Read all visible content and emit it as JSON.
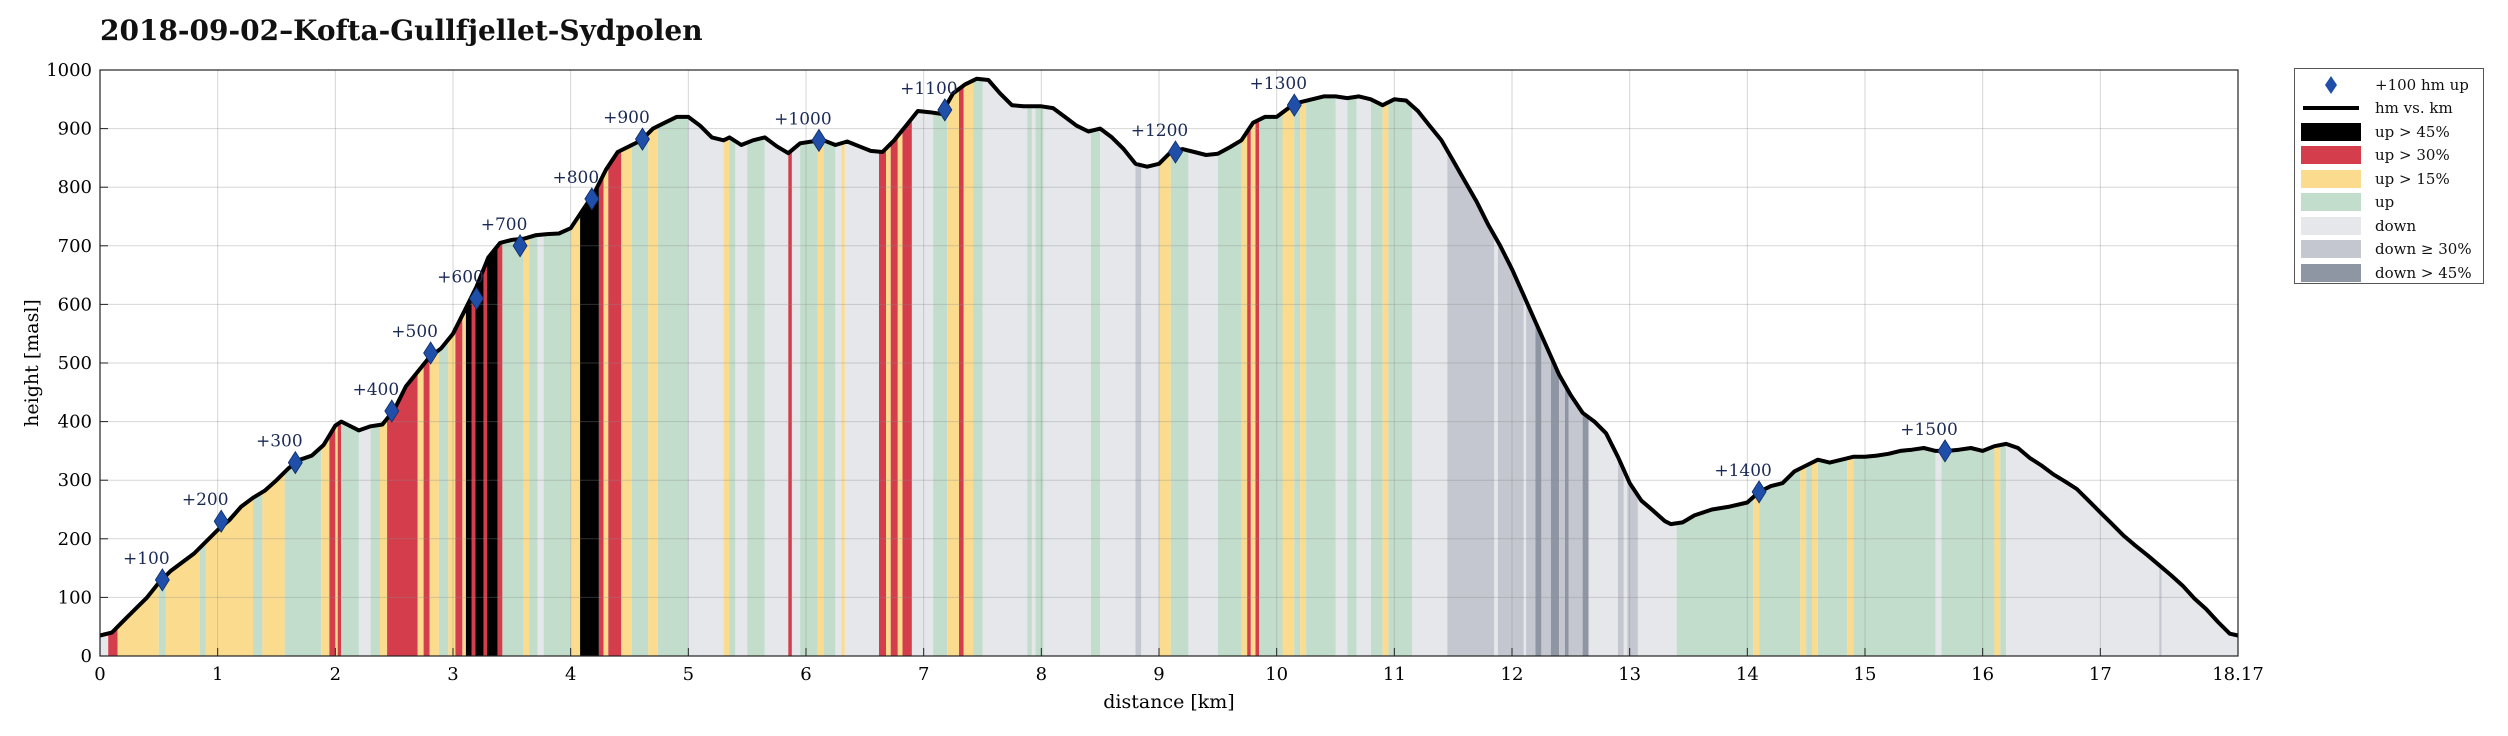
{
  "chart_data": {
    "type": "area",
    "title": "2018-09-02–Kofta-Gullfjellet-Sydpolen",
    "xlabel": "distance [km]",
    "ylabel": "height [masl]",
    "xlim": [
      0,
      18.17
    ],
    "ylim": [
      0,
      1000
    ],
    "xticks": [
      "0",
      "1",
      "2",
      "3",
      "4",
      "5",
      "6",
      "7",
      "8",
      "9",
      "10",
      "11",
      "12",
      "13",
      "14",
      "15",
      "16",
      "17",
      "18.17"
    ],
    "yticks": [
      "0",
      "100",
      "200",
      "300",
      "400",
      "500",
      "600",
      "700",
      "800",
      "900",
      "1000"
    ],
    "grid": true,
    "legend_position": "outside-right",
    "colors": {
      "line": "#000000",
      "marker": "#1f4fa8",
      "up45": "#000000",
      "up30": "#d43d4c",
      "up15": "#fbdc8e",
      "up": "#c2ddcb",
      "down": "#e6e7ea",
      "down30": "#c4c7cf",
      "down45": "#8f96a3"
    },
    "legend": [
      {
        "key": "marker",
        "label": "+100 hm up"
      },
      {
        "key": "line",
        "label": "hm vs. km"
      },
      {
        "key": "up45",
        "label": "up > 45%"
      },
      {
        "key": "up30",
        "label": "up > 30%"
      },
      {
        "key": "up15",
        "label": "up > 15%"
      },
      {
        "key": "up",
        "label": "up"
      },
      {
        "key": "down",
        "label": "down"
      },
      {
        "key": "down30",
        "label": "down ≥ 30%"
      },
      {
        "key": "down45",
        "label": "down > 45%"
      }
    ],
    "profile": [
      [
        0.0,
        35
      ],
      [
        0.1,
        40
      ],
      [
        0.2,
        60
      ],
      [
        0.3,
        80
      ],
      [
        0.4,
        100
      ],
      [
        0.5,
        125
      ],
      [
        0.6,
        145
      ],
      [
        0.8,
        175
      ],
      [
        1.0,
        215
      ],
      [
        1.1,
        232
      ],
      [
        1.2,
        255
      ],
      [
        1.3,
        270
      ],
      [
        1.4,
        282
      ],
      [
        1.5,
        300
      ],
      [
        1.6,
        320
      ],
      [
        1.7,
        335
      ],
      [
        1.8,
        342
      ],
      [
        1.9,
        360
      ],
      [
        2.0,
        393
      ],
      [
        2.05,
        400
      ],
      [
        2.1,
        395
      ],
      [
        2.2,
        385
      ],
      [
        2.3,
        392
      ],
      [
        2.4,
        395
      ],
      [
        2.5,
        420
      ],
      [
        2.6,
        460
      ],
      [
        2.7,
        485
      ],
      [
        2.8,
        510
      ],
      [
        2.9,
        525
      ],
      [
        3.0,
        550
      ],
      [
        3.1,
        590
      ],
      [
        3.2,
        630
      ],
      [
        3.3,
        680
      ],
      [
        3.4,
        705
      ],
      [
        3.5,
        710
      ],
      [
        3.6,
        712
      ],
      [
        3.7,
        718
      ],
      [
        3.8,
        720
      ],
      [
        3.9,
        721
      ],
      [
        4.0,
        730
      ],
      [
        4.1,
        760
      ],
      [
        4.2,
        790
      ],
      [
        4.3,
        830
      ],
      [
        4.4,
        860
      ],
      [
        4.5,
        870
      ],
      [
        4.6,
        880
      ],
      [
        4.7,
        900
      ],
      [
        4.8,
        910
      ],
      [
        4.9,
        920
      ],
      [
        5.0,
        920
      ],
      [
        5.1,
        905
      ],
      [
        5.2,
        885
      ],
      [
        5.3,
        880
      ],
      [
        5.35,
        885
      ],
      [
        5.45,
        872
      ],
      [
        5.55,
        880
      ],
      [
        5.65,
        885
      ],
      [
        5.75,
        870
      ],
      [
        5.85,
        858
      ],
      [
        5.95,
        875
      ],
      [
        6.05,
        878
      ],
      [
        6.15,
        880
      ],
      [
        6.25,
        872
      ],
      [
        6.35,
        878
      ],
      [
        6.45,
        870
      ],
      [
        6.55,
        862
      ],
      [
        6.65,
        860
      ],
      [
        6.75,
        880
      ],
      [
        6.85,
        905
      ],
      [
        6.95,
        930
      ],
      [
        7.05,
        928
      ],
      [
        7.15,
        925
      ],
      [
        7.25,
        960
      ],
      [
        7.35,
        975
      ],
      [
        7.45,
        985
      ],
      [
        7.55,
        983
      ],
      [
        7.65,
        960
      ],
      [
        7.75,
        940
      ],
      [
        7.85,
        938
      ],
      [
        8.0,
        938
      ],
      [
        8.1,
        935
      ],
      [
        8.2,
        920
      ],
      [
        8.3,
        905
      ],
      [
        8.4,
        895
      ],
      [
        8.5,
        900
      ],
      [
        8.6,
        885
      ],
      [
        8.7,
        865
      ],
      [
        8.8,
        840
      ],
      [
        8.9,
        835
      ],
      [
        9.0,
        840
      ],
      [
        9.1,
        860
      ],
      [
        9.2,
        865
      ],
      [
        9.3,
        860
      ],
      [
        9.4,
        855
      ],
      [
        9.5,
        857
      ],
      [
        9.6,
        868
      ],
      [
        9.7,
        880
      ],
      [
        9.8,
        910
      ],
      [
        9.9,
        920
      ],
      [
        10.0,
        920
      ],
      [
        10.1,
        935
      ],
      [
        10.2,
        945
      ],
      [
        10.3,
        950
      ],
      [
        10.4,
        955
      ],
      [
        10.5,
        955
      ],
      [
        10.6,
        952
      ],
      [
        10.7,
        955
      ],
      [
        10.8,
        950
      ],
      [
        10.9,
        940
      ],
      [
        11.0,
        950
      ],
      [
        11.1,
        948
      ],
      [
        11.2,
        930
      ],
      [
        11.3,
        905
      ],
      [
        11.4,
        880
      ],
      [
        11.5,
        845
      ],
      [
        11.6,
        810
      ],
      [
        11.7,
        775
      ],
      [
        11.8,
        735
      ],
      [
        11.9,
        700
      ],
      [
        12.0,
        660
      ],
      [
        12.1,
        615
      ],
      [
        12.2,
        570
      ],
      [
        12.3,
        525
      ],
      [
        12.4,
        480
      ],
      [
        12.5,
        445
      ],
      [
        12.6,
        415
      ],
      [
        12.7,
        400
      ],
      [
        12.8,
        380
      ],
      [
        12.9,
        340
      ],
      [
        13.0,
        295
      ],
      [
        13.1,
        265
      ],
      [
        13.2,
        248
      ],
      [
        13.3,
        230
      ],
      [
        13.35,
        225
      ],
      [
        13.45,
        228
      ],
      [
        13.55,
        240
      ],
      [
        13.7,
        250
      ],
      [
        13.85,
        255
      ],
      [
        14.0,
        262
      ],
      [
        14.1,
        280
      ],
      [
        14.2,
        290
      ],
      [
        14.3,
        295
      ],
      [
        14.4,
        315
      ],
      [
        14.5,
        325
      ],
      [
        14.6,
        335
      ],
      [
        14.7,
        330
      ],
      [
        14.8,
        335
      ],
      [
        14.9,
        340
      ],
      [
        15.0,
        340
      ],
      [
        15.1,
        342
      ],
      [
        15.2,
        345
      ],
      [
        15.3,
        350
      ],
      [
        15.4,
        352
      ],
      [
        15.5,
        355
      ],
      [
        15.6,
        350
      ],
      [
        15.7,
        350
      ],
      [
        15.8,
        352
      ],
      [
        15.9,
        355
      ],
      [
        16.0,
        350
      ],
      [
        16.1,
        358
      ],
      [
        16.2,
        362
      ],
      [
        16.3,
        355
      ],
      [
        16.4,
        338
      ],
      [
        16.5,
        325
      ],
      [
        16.6,
        310
      ],
      [
        16.7,
        298
      ],
      [
        16.8,
        285
      ],
      [
        16.9,
        265
      ],
      [
        17.0,
        245
      ],
      [
        17.1,
        225
      ],
      [
        17.2,
        205
      ],
      [
        17.3,
        188
      ],
      [
        17.4,
        172
      ],
      [
        17.5,
        155
      ],
      [
        17.6,
        138
      ],
      [
        17.7,
        120
      ],
      [
        17.8,
        98
      ],
      [
        17.9,
        80
      ],
      [
        18.0,
        58
      ],
      [
        18.1,
        38
      ],
      [
        18.17,
        35
      ]
    ],
    "markers": [
      {
        "x": 0.53,
        "y": 130,
        "label": "+100"
      },
      {
        "x": 1.03,
        "y": 230,
        "label": "+200"
      },
      {
        "x": 1.66,
        "y": 330,
        "label": "+300"
      },
      {
        "x": 2.48,
        "y": 418,
        "label": "+400"
      },
      {
        "x": 2.81,
        "y": 517,
        "label": "+500"
      },
      {
        "x": 3.2,
        "y": 610,
        "label": "+600"
      },
      {
        "x": 3.57,
        "y": 700,
        "label": "+700"
      },
      {
        "x": 4.18,
        "y": 780,
        "label": "+800"
      },
      {
        "x": 4.61,
        "y": 882,
        "label": "+900"
      },
      {
        "x": 6.11,
        "y": 880,
        "label": "+1000"
      },
      {
        "x": 7.18,
        "y": 932,
        "label": "+1100"
      },
      {
        "x": 9.14,
        "y": 860,
        "label": "+1200"
      },
      {
        "x": 10.15,
        "y": 940,
        "label": "+1300"
      },
      {
        "x": 14.1,
        "y": 280,
        "label": "+1400"
      },
      {
        "x": 15.68,
        "y": 350,
        "label": "+1500"
      }
    ],
    "bands": [
      [
        "down",
        0,
        0.07
      ],
      [
        "up30",
        0.07,
        0.15
      ],
      [
        "up15",
        0.15,
        0.5
      ],
      [
        "up",
        0.5,
        0.56
      ],
      [
        "up15",
        0.56,
        0.85
      ],
      [
        "up",
        0.85,
        0.9
      ],
      [
        "up15",
        0.9,
        1.3
      ],
      [
        "up",
        1.3,
        1.38
      ],
      [
        "up15",
        1.38,
        1.57
      ],
      [
        "up",
        1.57,
        1.88
      ],
      [
        "up15",
        1.88,
        1.95
      ],
      [
        "up30",
        1.95,
        2.0
      ],
      [
        "up15",
        2.0,
        2.02
      ],
      [
        "up30",
        2.02,
        2.05
      ],
      [
        "up",
        2.05,
        2.2
      ],
      [
        "down",
        2.2,
        2.3
      ],
      [
        "up",
        2.3,
        2.38
      ],
      [
        "up15",
        2.38,
        2.44
      ],
      [
        "up30",
        2.44,
        2.7
      ],
      [
        "up15",
        2.7,
        2.75
      ],
      [
        "up30",
        2.75,
        2.8
      ],
      [
        "up15",
        2.8,
        2.88
      ],
      [
        "up",
        2.88,
        2.96
      ],
      [
        "up15",
        2.96,
        3.02
      ],
      [
        "up30",
        3.02,
        3.08
      ],
      [
        "up15",
        3.08,
        3.11
      ],
      [
        "up45",
        3.11,
        3.16
      ],
      [
        "up30",
        3.16,
        3.19
      ],
      [
        "up45",
        3.19,
        3.26
      ],
      [
        "up30",
        3.26,
        3.29
      ],
      [
        "up45",
        3.29,
        3.38
      ],
      [
        "up30",
        3.38,
        3.42
      ],
      [
        "up",
        3.42,
        3.6
      ],
      [
        "up15",
        3.6,
        3.65
      ],
      [
        "up",
        3.65,
        3.72
      ],
      [
        "down",
        3.72,
        3.77
      ],
      [
        "up",
        3.77,
        4.0
      ],
      [
        "up15",
        4.0,
        4.08
      ],
      [
        "up45",
        4.08,
        4.24
      ],
      [
        "up30",
        4.24,
        4.28
      ],
      [
        "up15",
        4.28,
        4.32
      ],
      [
        "up30",
        4.32,
        4.43
      ],
      [
        "up15",
        4.43,
        4.52
      ],
      [
        "up",
        4.52,
        4.66
      ],
      [
        "up15",
        4.66,
        4.74
      ],
      [
        "up",
        4.74,
        5.0
      ],
      [
        "down",
        5.0,
        5.3
      ],
      [
        "up15",
        5.3,
        5.35
      ],
      [
        "up",
        5.35,
        5.4
      ],
      [
        "down",
        5.4,
        5.5
      ],
      [
        "up",
        5.5,
        5.65
      ],
      [
        "down",
        5.65,
        5.85
      ],
      [
        "up30",
        5.85,
        5.88
      ],
      [
        "down",
        5.88,
        5.95
      ],
      [
        "up",
        5.95,
        6.1
      ],
      [
        "up15",
        6.1,
        6.15
      ],
      [
        "up",
        6.15,
        6.25
      ],
      [
        "down",
        6.25,
        6.3
      ],
      [
        "up15",
        6.3,
        6.33
      ],
      [
        "down",
        6.33,
        6.62
      ],
      [
        "up30",
        6.62,
        6.68
      ],
      [
        "up15",
        6.68,
        6.72
      ],
      [
        "up30",
        6.72,
        6.78
      ],
      [
        "up15",
        6.78,
        6.82
      ],
      [
        "up30",
        6.82,
        6.9
      ],
      [
        "down",
        6.9,
        7.08
      ],
      [
        "up",
        7.08,
        7.2
      ],
      [
        "up15",
        7.2,
        7.3
      ],
      [
        "up30",
        7.3,
        7.34
      ],
      [
        "up15",
        7.34,
        7.42
      ],
      [
        "up",
        7.42,
        7.5
      ],
      [
        "down",
        7.5,
        7.88
      ],
      [
        "up",
        7.88,
        7.92
      ],
      [
        "down",
        7.92,
        7.95
      ],
      [
        "up",
        7.95,
        8.02
      ],
      [
        "down",
        8.02,
        8.42
      ],
      [
        "up",
        8.42,
        8.5
      ],
      [
        "down",
        8.5,
        8.8
      ],
      [
        "down30",
        8.8,
        8.85
      ],
      [
        "down",
        8.85,
        9.0
      ],
      [
        "up15",
        9.0,
        9.1
      ],
      [
        "up",
        9.1,
        9.25
      ],
      [
        "down",
        9.25,
        9.5
      ],
      [
        "up",
        9.5,
        9.7
      ],
      [
        "up15",
        9.7,
        9.75
      ],
      [
        "up30",
        9.75,
        9.78
      ],
      [
        "up15",
        9.78,
        9.82
      ],
      [
        "up30",
        9.82,
        9.85
      ],
      [
        "up",
        9.85,
        10.05
      ],
      [
        "up15",
        10.05,
        10.15
      ],
      [
        "up",
        10.15,
        10.2
      ],
      [
        "up15",
        10.2,
        10.25
      ],
      [
        "up",
        10.25,
        10.5
      ],
      [
        "down",
        10.5,
        10.6
      ],
      [
        "up",
        10.6,
        10.68
      ],
      [
        "down",
        10.68,
        10.8
      ],
      [
        "up",
        10.8,
        10.9
      ],
      [
        "up15",
        10.9,
        10.95
      ],
      [
        "up",
        10.95,
        11.15
      ],
      [
        "down",
        11.15,
        11.45
      ],
      [
        "down30",
        11.45,
        11.85
      ],
      [
        "down",
        11.85,
        11.88
      ],
      [
        "down30",
        11.88,
        12.1
      ],
      [
        "down",
        12.1,
        12.12
      ],
      [
        "down30",
        12.12,
        12.2
      ],
      [
        "down45",
        12.2,
        12.25
      ],
      [
        "down30",
        12.25,
        12.33
      ],
      [
        "down45",
        12.33,
        12.4
      ],
      [
        "down30",
        12.4,
        12.45
      ],
      [
        "down45",
        12.45,
        12.48
      ],
      [
        "down30",
        12.48,
        12.6
      ],
      [
        "down45",
        12.6,
        12.65
      ],
      [
        "down",
        12.65,
        12.9
      ],
      [
        "down30",
        12.9,
        12.95
      ],
      [
        "down",
        12.95,
        12.98
      ],
      [
        "down30",
        12.98,
        13.07
      ],
      [
        "down",
        13.07,
        13.4
      ],
      [
        "up",
        13.4,
        14.05
      ],
      [
        "up15",
        14.05,
        14.1
      ],
      [
        "up",
        14.1,
        14.45
      ],
      [
        "up15",
        14.45,
        14.5
      ],
      [
        "up",
        14.5,
        14.55
      ],
      [
        "up15",
        14.55,
        14.6
      ],
      [
        "up",
        14.6,
        14.85
      ],
      [
        "up15",
        14.85,
        14.9
      ],
      [
        "up",
        14.9,
        15.6
      ],
      [
        "down",
        15.6,
        15.65
      ],
      [
        "up",
        15.65,
        16.1
      ],
      [
        "up15",
        16.1,
        16.15
      ],
      [
        "up",
        16.15,
        16.2
      ],
      [
        "down",
        16.2,
        17.5
      ],
      [
        "down30",
        17.5,
        17.52
      ],
      [
        "down",
        17.52,
        18.17
      ]
    ]
  }
}
